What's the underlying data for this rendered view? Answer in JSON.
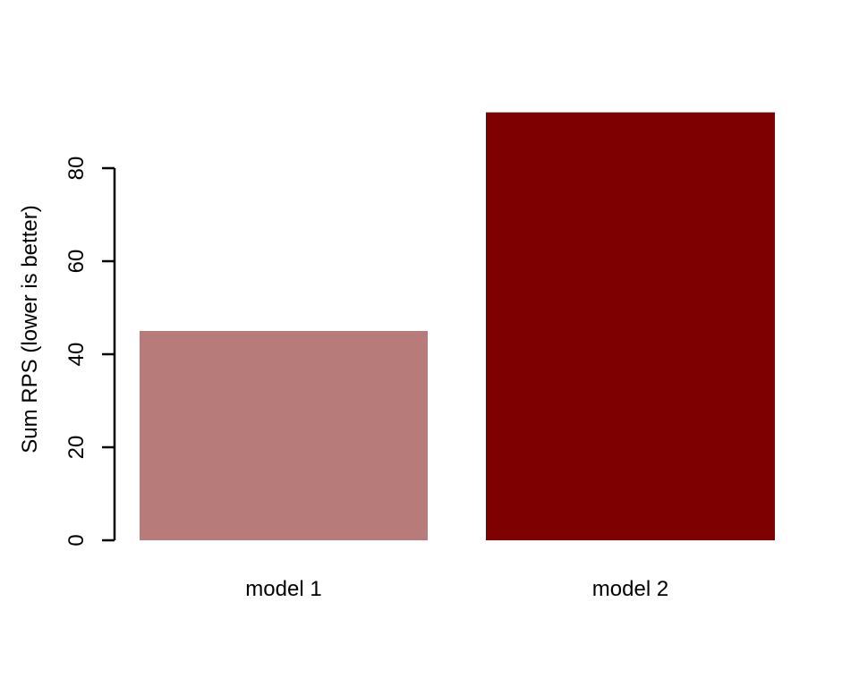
{
  "chart_data": {
    "type": "bar",
    "categories": [
      "model 1",
      "model 2"
    ],
    "values": [
      45,
      92
    ],
    "colors": [
      "#b77b7a",
      "#7f0000"
    ],
    "ylabel": "Sum RPS (lower is better)",
    "xlabel": "",
    "title": "",
    "ylim": [
      0,
      92
    ],
    "yticks": [
      "0",
      "20",
      "40",
      "60",
      "80"
    ],
    "grid": false,
    "legend": "none"
  }
}
